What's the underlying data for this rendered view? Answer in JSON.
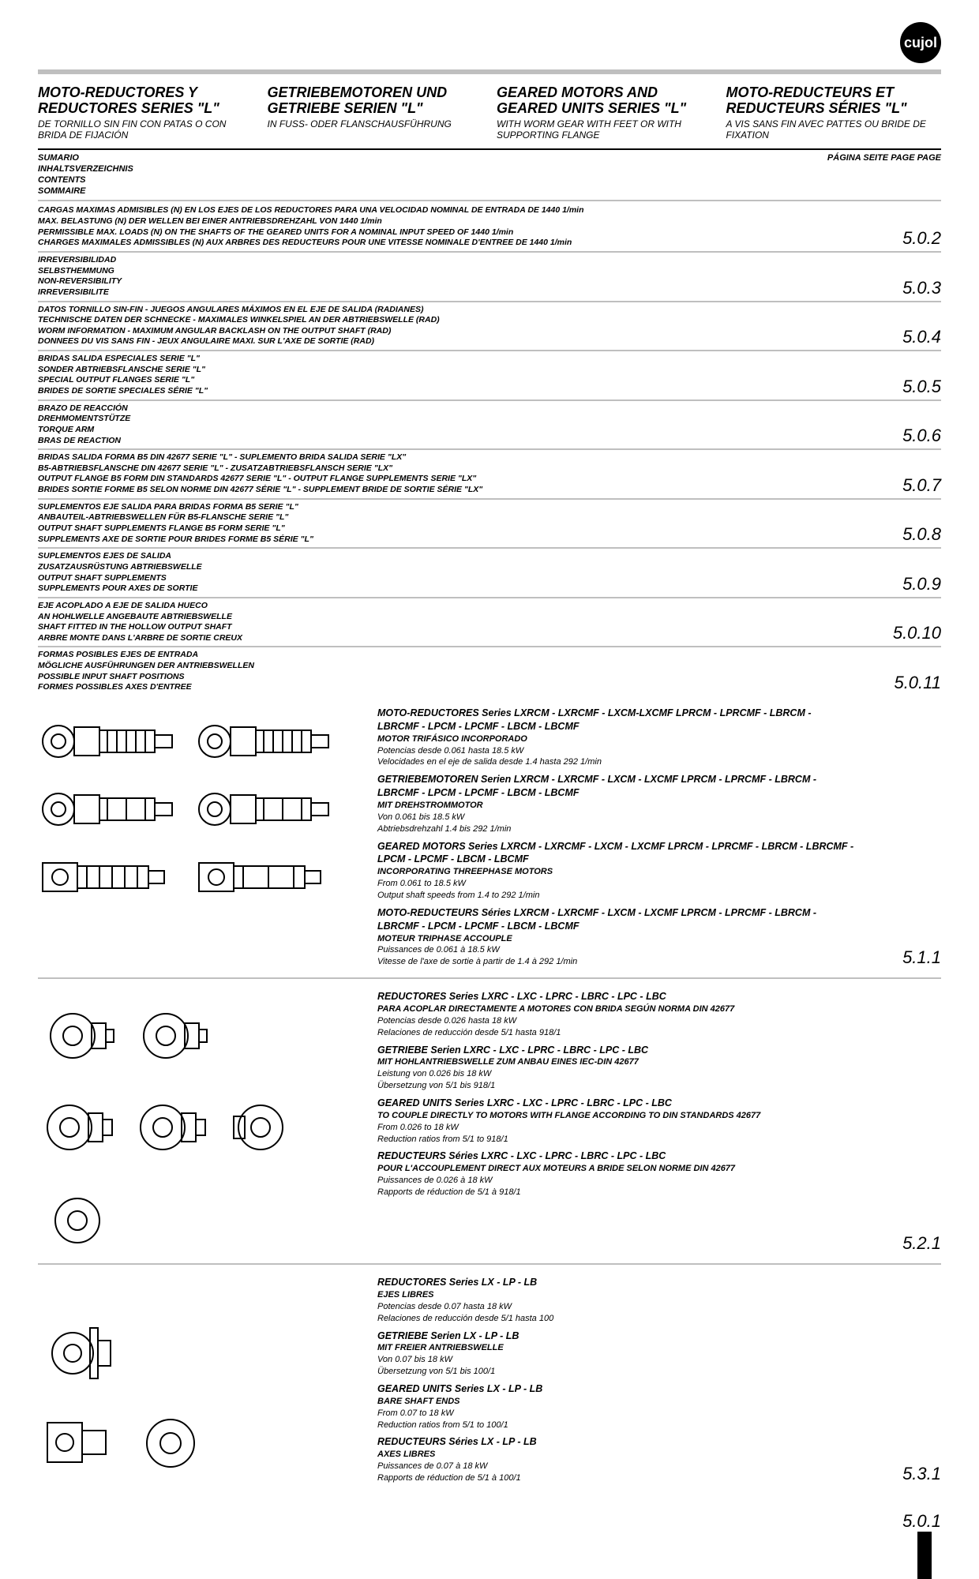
{
  "logo_text": "cujol",
  "header": {
    "cols": [
      {
        "main": "MOTO-REDUCTORES Y REDUCTORES SERIES \"L\"",
        "sub": "DE TORNILLO SIN FIN CON PATAS O CON BRIDA DE FIJACIÓN"
      },
      {
        "main": "GETRIEBEMOTOREN UND GETRIEBE SERIEN \"L\"",
        "sub": "IN FUSS- ODER FLANSCHAUSFÜHRUNG"
      },
      {
        "main": "GEARED MOTORS AND GEARED UNITS SERIES \"L\"",
        "sub": "WITH WORM GEAR WITH FEET OR WITH SUPPORTING FLANGE"
      },
      {
        "main": "MOTO-REDUCTEURS ET REDUCTEURS SÉRIES \"L\"",
        "sub": "A VIS SANS FIN AVEC PATTES OU BRIDE DE FIXATION"
      }
    ]
  },
  "sumario_left": [
    "SUMARIO",
    "INHALTSVERZEICHNIS",
    "CONTENTS",
    "SOMMAIRE"
  ],
  "sumario_right": [
    "PÁGINA",
    "SEITE",
    "PAGE",
    "PAGE"
  ],
  "toc": [
    {
      "lines": [
        "CARGAS MAXIMAS ADMISIBLES (N) EN LOS EJES DE LOS REDUCTORES PARA UNA VELOCIDAD NOMINAL DE ENTRADA DE 1440 1/min",
        "MAX. BELASTUNG (N) DER WELLEN BEI EINER ANTRIEBSDREHZAHL VON 1440 1/min",
        "PERMISSIBLE MAX. LOADS (N) ON THE SHAFTS OF THE GEARED UNITS FOR A NOMINAL INPUT SPEED OF 1440 1/min",
        "CHARGES MAXIMALES ADMISSIBLES (N) AUX ARBRES DES REDUCTEURS POUR UNE VITESSE NOMINALE D'ENTREE DE 1440 1/min"
      ],
      "page": "5.0.2"
    },
    {
      "lines": [
        "IRREVERSIBILIDAD",
        "SELBSTHEMMUNG",
        "NON-REVERSIBILITY",
        "IRREVERSIBILITE"
      ],
      "page": "5.0.3"
    },
    {
      "lines": [
        "DATOS TORNILLO SIN-FIN - JUEGOS ANGULARES MÁXIMOS EN EL EJE DE SALIDA (RADIANES)",
        "TECHNISCHE DATEN DER SCHNECKE - MAXIMALES WINKELSPIEL AN DER ABTRIEBSWELLE (RAD)",
        "WORM INFORMATION - MAXIMUM ANGULAR BACKLASH ON THE OUTPUT SHAFT (RAD)",
        "DONNEES DU VIS SANS FIN - JEUX ANGULAIRE MAXI. SUR L'AXE DE SORTIE (RAD)"
      ],
      "page": "5.0.4"
    },
    {
      "lines": [
        "BRIDAS SALIDA ESPECIALES SERIE \"L\"",
        "SONDER ABTRIEBSFLANSCHE SERIE \"L\"",
        "SPECIAL OUTPUT FLANGES SERIE \"L\"",
        "BRIDES DE SORTIE SPECIALES SÉRIE \"L\""
      ],
      "page": "5.0.5"
    },
    {
      "lines": [
        "BRAZO DE REACCIÓN",
        "DREHMOMENTSTÜTZE",
        "TORQUE ARM",
        "BRAS DE REACTION"
      ],
      "page": "5.0.6"
    },
    {
      "lines": [
        "BRIDAS SALIDA FORMA B5 DIN 42677 SERIE \"L\" - SUPLEMENTO BRIDA SALIDA  SERIE \"LX\"",
        "B5-ABTRIEBSFLANSCHE DIN 42677 SERIE \"L\" -  ZUSATZABTRIEBSFLANSCH SERIE \"LX\"",
        "OUTPUT FLANGE B5 FORM DIN STANDARDS 42677 SERIE \"L\" - OUTPUT FLANGE SUPPLEMENTS SERIE \"LX\"",
        "BRIDES SORTIE FORME B5 SELON NORME DIN 42677 SÉRIE \"L\" - SUPPLEMENT BRIDE DE SORTIE SÉRIE \"LX\""
      ],
      "page": "5.0.7"
    },
    {
      "lines": [
        "SUPLEMENTOS EJE SALIDA PARA BRIDAS FORMA B5 SERIE \"L\"",
        "ANBAUTEIL-ABTRIEBSWELLEN FÜR B5-FLANSCHE SERIE \"L\"",
        "OUTPUT SHAFT SUPPLEMENTS FLANGE B5 FORM SERIE \"L\"",
        "SUPPLEMENTS AXE DE SORTIE POUR BRIDES FORME B5 SÉRIE \"L\""
      ],
      "page": "5.0.8"
    },
    {
      "lines": [
        "SUPLEMENTOS EJES DE SALIDA",
        "ZUSATZAUSRÜSTUNG ABTRIEBSWELLE",
        "OUTPUT SHAFT SUPPLEMENTS",
        "SUPPLEMENTS POUR AXES DE SORTIE"
      ],
      "page": "5.0.9"
    },
    {
      "lines": [
        "EJE ACOPLADO A EJE DE SALIDA HUECO",
        "AN HOHLWELLE ANGEBAUTE ABTRIEBSWELLE",
        "SHAFT FITTED  IN THE HOLLOW OUTPUT SHAFT",
        "ARBRE MONTE DANS L'ARBRE DE SORTIE CREUX"
      ],
      "page": "5.0.10"
    },
    {
      "lines": [
        "FORMAS POSIBLES EJES DE ENTRADA",
        "MÖGLICHE AUSFÜHRUNGEN DER ANTRIEBSWELLEN",
        "POSSIBLE INPUT SHAFT POSITIONS",
        "FORMES POSSIBLES AXES D'ENTREE"
      ],
      "page": "5.0.11"
    }
  ],
  "sections": [
    {
      "page": "5.1.1",
      "blocks": [
        {
          "title": "MOTO-REDUCTORES Series LXRCM - LXRCMF - LXCM-LXCMF LPRCM - LPRCMF - LBRCM - LBRCMF - LPCM - LPCMF - LBCM - LBCMF",
          "sub": "MOTOR TRIFÁSICO INCORPORADO",
          "lines": [
            "Potencias desde 0.061 hasta 18.5 kW",
            "Velocidades en el eje de salida desde 1.4 hasta 292 1/min"
          ]
        },
        {
          "title": "GETRIEBEMOTOREN Serien LXRCM - LXRCMF - LXCM - LXCMF LPRCM - LPRCMF - LBRCM - LBRCMF - LPCM - LPCMF - LBCM - LBCMF",
          "sub": "MIT DREHSTROMMOTOR",
          "lines": [
            "Von 0.061 bis 18.5 kW",
            "Abtriebsdrehzahl 1.4 bis 292 1/min"
          ]
        },
        {
          "title": "GEARED MOTORS Series LXRCM - LXRCMF - LXCM - LXCMF LPRCM - LPRCMF - LBRCM - LBRCMF - LPCM - LPCMF - LBCM - LBCMF",
          "sub": "INCORPORATING THREEPHASE MOTORS",
          "lines": [
            "From 0.061 to 18.5 kW",
            "Output shaft speeds from 1.4 to 292 1/min"
          ]
        },
        {
          "title": "MOTO-REDUCTEURS Séries LXRCM - LXRCMF - LXCM - LXCMF LPRCM - LPRCMF - LBRCM - LBRCMF - LPCM - LPCMF - LBCM - LBCMF",
          "sub": "MOTEUR TRIPHASE ACCOUPLE",
          "lines": [
            "Puissances de 0.061 à 18.5 kW",
            "Vitesse de l'axe de sortie à partir de 1.4 à 292 1/min"
          ]
        }
      ]
    },
    {
      "page": "5.2.1",
      "blocks": [
        {
          "title": "REDUCTORES Series LXRC - LXC - LPRC - LBRC - LPC - LBC",
          "sub": "PARA ACOPLAR DIRECTAMENTE A MOTORES CON BRIDA SEGÚN NORMA DIN 42677",
          "lines": [
            "Potencias desde 0.026 hasta 18 kW",
            "Relaciones de reducción desde 5/1 hasta 918/1"
          ]
        },
        {
          "title": "GETRIEBE Serien LXRC - LXC - LPRC - LBRC - LPC - LBC",
          "sub": "MIT HOHLANTRIEBSWELLE ZUM ANBAU EINES IEC-DIN 42677",
          "lines": [
            "Leistung von 0.026 bis 18 kW",
            "Übersetzung von 5/1 bis 918/1"
          ]
        },
        {
          "title": "GEARED UNITS Series LXRC - LXC - LPRC - LBRC - LPC - LBC",
          "sub": "TO COUPLE DIRECTLY TO MOTORS WITH FLANGE ACCORDING TO DIN STANDARDS 42677",
          "lines": [
            "From 0.026 to 18 kW",
            "Reduction ratios from 5/1 to 918/1"
          ]
        },
        {
          "title": "REDUCTEURS Séries LXRC - LXC - LPRC - LBRC - LPC - LBC",
          "sub": "POUR L'ACCOUPLEMENT DIRECT AUX MOTEURS A BRIDE SELON NORME DIN 42677",
          "lines": [
            "Puissances de 0.026 à 18 kW",
            "Rapports de réduction de 5/1 à 918/1"
          ]
        }
      ]
    },
    {
      "page": "5.3.1",
      "blocks": [
        {
          "title": "REDUCTORES Series LX - LP - LB",
          "sub": "EJES LIBRES",
          "lines": [
            "Potencias desde 0.07 hasta 18 kW",
            "Relaciones de reducción desde 5/1 hasta 100"
          ]
        },
        {
          "title": "GETRIEBE Serien LX - LP - LB",
          "sub": "MIT FREIER ANTRIEBSWELLE",
          "lines": [
            "Von 0.07 bis 18 kW",
            "Übersetzung von 5/1 bis 100/1"
          ]
        },
        {
          "title": "GEARED UNITS Series LX - LP - LB",
          "sub": "BARE SHAFT ENDS",
          "lines": [
            "From 0.07 to 18 kW",
            "Reduction ratios from 5/1 to 100/1"
          ]
        },
        {
          "title": "REDUCTEURS Séries LX - LP - LB",
          "sub": "AXES LIBRES",
          "lines": [
            "Puissances de 0.07 à 18 kW",
            "Rapports de réduction de 5/1 à 100/1"
          ]
        }
      ]
    }
  ],
  "footer_page": "5.0.1",
  "svg": {
    "motor_fill": "#ffffff",
    "motor_stroke": "#000000"
  }
}
